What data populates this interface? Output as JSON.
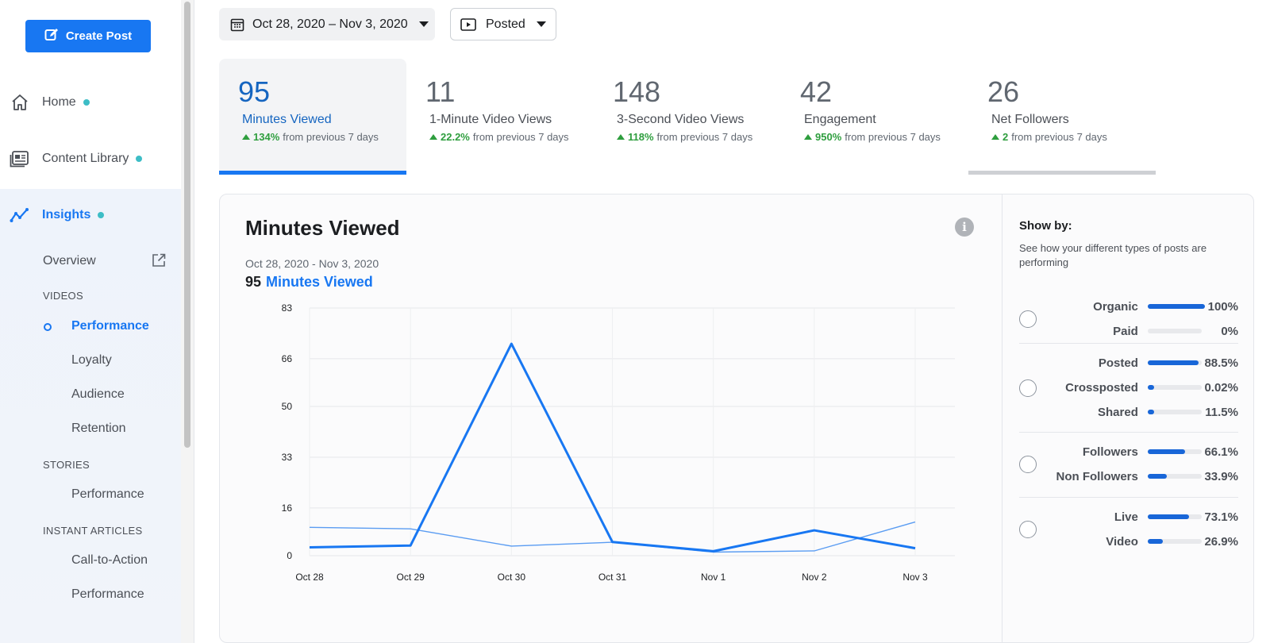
{
  "sidebar": {
    "create_post": "Create Post",
    "nav": [
      {
        "label": "Home",
        "icon": "home-icon",
        "dot": true
      },
      {
        "label": "Content Library",
        "icon": "content-library-icon",
        "dot": true
      },
      {
        "label": "Insights",
        "icon": "insights-icon",
        "dot": true,
        "active": true
      }
    ],
    "overview": "Overview",
    "sections": {
      "videos": "VIDEOS",
      "stories": "STORIES",
      "instant_articles": "INSTANT ARTICLES"
    },
    "videos_items": [
      "Performance",
      "Loyalty",
      "Audience",
      "Retention"
    ],
    "stories_items": [
      "Performance"
    ],
    "articles_items": [
      "Call-to-Action",
      "Performance"
    ]
  },
  "filters": {
    "date_range": "Oct 28, 2020 – Nov 3, 2020",
    "post_type": "Posted"
  },
  "kpis": [
    {
      "value": "95",
      "label": "Minutes Viewed",
      "change": "134%",
      "suffix": "from previous 7 days"
    },
    {
      "value": "11",
      "label": "1-Minute Video Views",
      "change": "22.2%",
      "suffix": "from previous 7 days"
    },
    {
      "value": "148",
      "label": "3-Second Video Views",
      "change": "118%",
      "suffix": "from previous 7 days"
    },
    {
      "value": "42",
      "label": "Engagement",
      "change": "950%",
      "suffix": "from previous 7 days"
    },
    {
      "value": "26",
      "label": "Net Followers",
      "change": "2",
      "suffix": "from previous 7 days"
    }
  ],
  "chart_panel": {
    "title": "Minutes Viewed",
    "range": "Oct 28, 2020 - Nov 3, 2020",
    "total_value": "95",
    "total_label": "Minutes Viewed"
  },
  "chart_data": {
    "type": "line",
    "title": "Minutes Viewed",
    "categories": [
      "Oct 28",
      "Oct 29",
      "Oct 30",
      "Oct 31",
      "Nov 1",
      "Nov 2",
      "Nov 3"
    ],
    "yticks": [
      0,
      16,
      33,
      50,
      66,
      83
    ],
    "ylim": [
      0,
      83
    ],
    "grid": true,
    "series": [
      {
        "values": [
          2.8,
          3.4,
          71,
          4.6,
          1.5,
          8.5,
          2.5
        ],
        "color": "#1877f2",
        "weight": "bold"
      },
      {
        "values": [
          9.5,
          9.0,
          3.2,
          4.5,
          1.2,
          1.6,
          11.3
        ],
        "color": "#5a9cf2",
        "weight": "thin"
      }
    ]
  },
  "show_by": {
    "title": "Show by:",
    "description": "See how your different types of posts are performing",
    "groups": [
      {
        "rows": [
          {
            "label": "Organic",
            "value": "100%",
            "pct": 100
          },
          {
            "label": "Paid",
            "value": "0%",
            "pct": 0
          }
        ]
      },
      {
        "rows": [
          {
            "label": "Posted",
            "value": "88.5%",
            "pct": 88.5
          },
          {
            "label": "Crossposted",
            "value": "0.02%",
            "pct": 0.02
          },
          {
            "label": "Shared",
            "value": "11.5%",
            "pct": 11.5
          }
        ]
      },
      {
        "rows": [
          {
            "label": "Followers",
            "value": "66.1%",
            "pct": 66.1
          },
          {
            "label": "Non Followers",
            "value": "33.9%",
            "pct": 33.9
          }
        ]
      },
      {
        "rows": [
          {
            "label": "Live",
            "value": "73.1%",
            "pct": 73.1
          },
          {
            "label": "Video",
            "value": "26.9%",
            "pct": 26.9
          }
        ]
      }
    ]
  },
  "colors": {
    "accent": "#1877f2",
    "positive": "#2e9e3e",
    "teal_dot": "#3dbdc6"
  }
}
